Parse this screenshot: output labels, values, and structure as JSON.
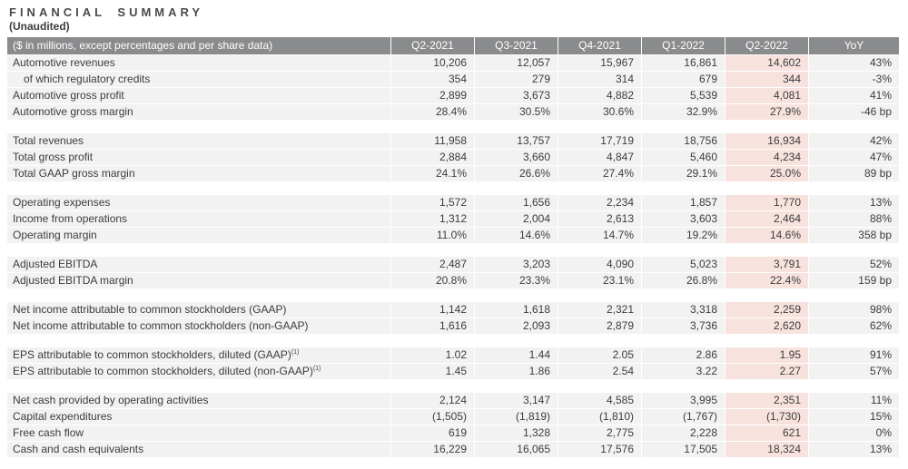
{
  "title": "FINANCIAL SUMMARY",
  "subtitle": "(Unaudited)",
  "colors": {
    "header_bg": "#8a8b8d",
    "header_text": "#ffffff",
    "row_bg": "#f2f2f2",
    "highlight_bg": "#f7e2de",
    "text": "#3c3c3c"
  },
  "table": {
    "label_header": "($ in millions, except percentages and per share data)",
    "columns": [
      "Q2-2021",
      "Q3-2021",
      "Q4-2021",
      "Q1-2022",
      "Q2-2022",
      "YoY"
    ],
    "highlight_column": "Q2-2022",
    "sections": [
      {
        "rows": [
          {
            "label": "Automotive revenues",
            "values": [
              "10,206",
              "12,057",
              "15,967",
              "16,861",
              "14,602",
              "43%"
            ]
          },
          {
            "label": "of which regulatory credits",
            "indent": true,
            "values": [
              "354",
              "279",
              "314",
              "679",
              "344",
              "-3%"
            ]
          },
          {
            "label": "Automotive gross profit",
            "values": [
              "2,899",
              "3,673",
              "4,882",
              "5,539",
              "4,081",
              "41%"
            ]
          },
          {
            "label": "Automotive gross margin",
            "values": [
              "28.4%",
              "30.5%",
              "30.6%",
              "32.9%",
              "27.9%",
              "-46 bp"
            ]
          }
        ]
      },
      {
        "rows": [
          {
            "label": "Total revenues",
            "values": [
              "11,958",
              "13,757",
              "17,719",
              "18,756",
              "16,934",
              "42%"
            ]
          },
          {
            "label": "Total gross profit",
            "values": [
              "2,884",
              "3,660",
              "4,847",
              "5,460",
              "4,234",
              "47%"
            ]
          },
          {
            "label": "Total GAAP gross margin",
            "values": [
              "24.1%",
              "26.6%",
              "27.4%",
              "29.1%",
              "25.0%",
              "89 bp"
            ]
          }
        ]
      },
      {
        "rows": [
          {
            "label": "Operating expenses",
            "values": [
              "1,572",
              "1,656",
              "2,234",
              "1,857",
              "1,770",
              "13%"
            ]
          },
          {
            "label": "Income from operations",
            "values": [
              "1,312",
              "2,004",
              "2,613",
              "3,603",
              "2,464",
              "88%"
            ]
          },
          {
            "label": "Operating margin",
            "values": [
              "11.0%",
              "14.6%",
              "14.7%",
              "19.2%",
              "14.6%",
              "358 bp"
            ]
          }
        ]
      },
      {
        "rows": [
          {
            "label": "Adjusted EBITDA",
            "values": [
              "2,487",
              "3,203",
              "4,090",
              "5,023",
              "3,791",
              "52%"
            ]
          },
          {
            "label": "Adjusted EBITDA margin",
            "values": [
              "20.8%",
              "23.3%",
              "23.1%",
              "26.8%",
              "22.4%",
              "159 bp"
            ]
          }
        ]
      },
      {
        "rows": [
          {
            "label": "Net income attributable to common stockholders (GAAP)",
            "values": [
              "1,142",
              "1,618",
              "2,321",
              "3,318",
              "2,259",
              "98%"
            ]
          },
          {
            "label": "Net income attributable to common stockholders (non-GAAP)",
            "values": [
              "1,616",
              "2,093",
              "2,879",
              "3,736",
              "2,620",
              "62%"
            ]
          }
        ]
      },
      {
        "rows": [
          {
            "label": "EPS attributable to common stockholders, diluted (GAAP)",
            "superscript": "(1)",
            "values": [
              "1.02",
              "1.44",
              "2.05",
              "2.86",
              "1.95",
              "91%"
            ]
          },
          {
            "label": "EPS attributable to common stockholders, diluted (non-GAAP)",
            "superscript": "(1)",
            "values": [
              "1.45",
              "1.86",
              "2.54",
              "3.22",
              "2.27",
              "57%"
            ]
          }
        ]
      },
      {
        "rows": [
          {
            "label": "Net cash provided by operating activities",
            "values": [
              "2,124",
              "3,147",
              "4,585",
              "3,995",
              "2,351",
              "11%"
            ]
          },
          {
            "label": "Capital expenditures",
            "values": [
              "(1,505)",
              "(1,819)",
              "(1,810)",
              "(1,767)",
              "(1,730)",
              "15%"
            ]
          },
          {
            "label": "Free cash flow",
            "values": [
              "619",
              "1,328",
              "2,775",
              "2,228",
              "621",
              "0%"
            ]
          },
          {
            "label": "Cash and cash equivalents",
            "values": [
              "16,229",
              "16,065",
              "17,576",
              "17,505",
              "18,324",
              "13%"
            ]
          }
        ]
      }
    ]
  }
}
